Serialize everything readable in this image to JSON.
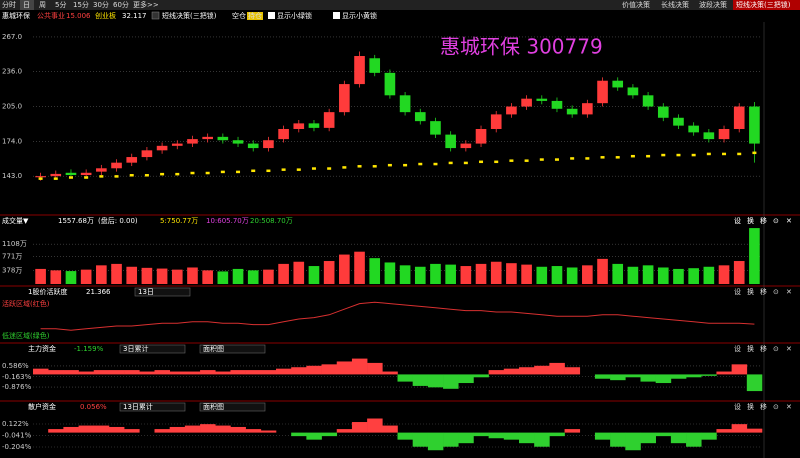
{
  "toolbar": {
    "tabs": [
      "分时",
      "日",
      "周",
      "5分",
      "15分",
      "30分",
      "60分",
      "更多>>"
    ],
    "right": [
      "价值决策",
      "长线决策",
      "波段决策",
      "短线决策(三把锁)"
    ]
  },
  "info": {
    "name": "惠城环保",
    "sector": "公共事业",
    "sector_value": "15.006",
    "board": "创业板",
    "board_value": "32.117",
    "indicator": "短线决策(三把锁)",
    "flat": "空仓",
    "hold": "持仓",
    "green_lock": "显示小绿锁",
    "yellow_lock": "显示小黄锁"
  },
  "panel_tools": [
    "设",
    "换",
    "移",
    "⊙",
    "✕"
  ],
  "chart_data": [
    {
      "type": "candlestick",
      "title": "惠城环保  300779",
      "up_color": "#ff3b3b",
      "down_color": "#22d822",
      "ma_color": "#ffe600",
      "open": [
        142,
        143,
        146,
        144,
        147,
        150,
        155,
        160,
        166,
        170,
        172,
        176,
        178,
        175,
        172,
        168,
        176,
        185,
        190,
        186,
        200,
        225,
        248,
        235,
        215,
        200,
        192,
        180,
        168,
        172,
        185,
        198,
        205,
        212,
        210,
        203,
        198,
        208,
        228,
        222,
        215,
        205,
        195,
        188,
        182,
        176,
        185,
        205
      ],
      "close": [
        143,
        145,
        144,
        146,
        150,
        155,
        160,
        166,
        170,
        172,
        176,
        178,
        175,
        172,
        168,
        175,
        185,
        190,
        186,
        200,
        225,
        250,
        235,
        215,
        200,
        192,
        180,
        168,
        172,
        185,
        198,
        205,
        212,
        210,
        203,
        198,
        208,
        228,
        222,
        215,
        205,
        195,
        188,
        182,
        176,
        185,
        205,
        172
      ],
      "high": [
        146,
        148,
        149,
        149,
        153,
        158,
        163,
        169,
        173,
        175,
        179,
        181,
        181,
        178,
        175,
        178,
        188,
        193,
        193,
        203,
        228,
        254,
        251,
        238,
        218,
        203,
        195,
        183,
        175,
        188,
        201,
        208,
        215,
        215,
        213,
        206,
        211,
        231,
        231,
        225,
        218,
        208,
        198,
        191,
        185,
        188,
        208,
        209
      ],
      "low": [
        139,
        140,
        141,
        141,
        144,
        147,
        152,
        157,
        163,
        167,
        169,
        173,
        172,
        169,
        165,
        165,
        173,
        182,
        183,
        183,
        197,
        222,
        232,
        212,
        197,
        189,
        177,
        165,
        165,
        169,
        182,
        195,
        202,
        207,
        200,
        195,
        195,
        205,
        219,
        212,
        202,
        192,
        185,
        179,
        173,
        173,
        182,
        155
      ],
      "ma_values": [
        141,
        141,
        142,
        142,
        143,
        143,
        144,
        144,
        145,
        145,
        146,
        146,
        147,
        147,
        148,
        148,
        149,
        149,
        150,
        150,
        151,
        152,
        152,
        153,
        153,
        154,
        154,
        155,
        155,
        156,
        156,
        157,
        157,
        158,
        158,
        159,
        159,
        160,
        160,
        161,
        161,
        162,
        162,
        162,
        163,
        163,
        163,
        164
      ],
      "ylim": [
        117.3,
        280.3
      ],
      "yticks": [
        {
          "value": 267,
          "label": "267.0"
        },
        {
          "value": 236,
          "label": "236.0"
        },
        {
          "value": 205,
          "label": "205.0"
        },
        {
          "value": 174,
          "label": "174.0"
        },
        {
          "value": 143,
          "label": "143.0"
        }
      ],
      "grid": true
    },
    {
      "type": "bar",
      "title": "成交量▼",
      "value_text": "1557.68万",
      "after_hours": "(盘后: 0.00)",
      "ma_labels": [
        "5:750.77万",
        "10:605.70万",
        "20:508.70万"
      ],
      "values": [
        420,
        380,
        360,
        400,
        520,
        560,
        480,
        450,
        430,
        400,
        460,
        380,
        350,
        420,
        380,
        400,
        560,
        620,
        500,
        640,
        820,
        900,
        720,
        600,
        520,
        480,
        560,
        540,
        500,
        560,
        620,
        580,
        540,
        480,
        500,
        460,
        520,
        700,
        560,
        480,
        520,
        460,
        420,
        440,
        480,
        520,
        640,
        1557.68
      ],
      "ylim": [
        0,
        1560
      ],
      "yticks": [
        {
          "value": 1108,
          "label": "1108万"
        },
        {
          "value": 771,
          "label": "771万"
        },
        {
          "value": 378,
          "label": "378万"
        }
      ],
      "grid": true
    },
    {
      "type": "line",
      "title": "1股价活跃度",
      "value_text": "21.366",
      "period": "13日",
      "upper_label": "活跃区域(红色)",
      "lower_label": "低迷区域(绿色)",
      "color": "#d83030",
      "values": [
        18,
        18,
        17,
        18,
        19,
        20,
        20,
        21,
        22,
        22,
        23,
        23,
        22,
        22,
        21,
        21,
        23,
        25,
        26,
        28,
        32,
        36,
        37,
        36,
        35,
        34,
        33,
        32,
        31,
        31,
        30,
        30,
        29,
        28,
        27,
        27,
        27,
        28,
        28,
        27,
        26,
        25,
        24,
        23,
        22,
        22,
        22,
        21.366
      ],
      "ylim": [
        10,
        40
      ]
    },
    {
      "type": "area",
      "title": "主力资金",
      "value_text": "-1.159%",
      "period": "3日累计",
      "style": "面积图",
      "up_color": "#ff4040",
      "down_color": "#2fd02f",
      "values": [
        0.4,
        0.3,
        0.3,
        0.2,
        0.3,
        0.3,
        0.3,
        0.2,
        0.3,
        0.2,
        0.2,
        0.3,
        0.2,
        0.3,
        0.3,
        0.3,
        0.4,
        0.5,
        0.6,
        0.7,
        0.9,
        1.1,
        0.8,
        0.2,
        -0.5,
        -0.8,
        -0.9,
        -1.0,
        -0.6,
        -0.2,
        0.3,
        0.4,
        0.5,
        0.6,
        0.8,
        0.5,
        0.0,
        -0.3,
        -0.4,
        -0.2,
        -0.5,
        -0.6,
        -0.3,
        -0.2,
        -0.1,
        0.2,
        0.7,
        -1.159
      ],
      "ylim": [
        -1.64,
        1.35
      ],
      "yticks": [
        {
          "value": 0.586,
          "label": "0.586%"
        },
        {
          "value": -0.163,
          "label": "-0.163%"
        },
        {
          "value": -0.876,
          "label": "-0.876%"
        }
      ],
      "grid": true
    },
    {
      "type": "area",
      "title": "散户资金",
      "value_text": "0.056%",
      "period": "13日累计",
      "style": "面积图",
      "up_color": "#ff4040",
      "down_color": "#2fd02f",
      "values": [
        0.0,
        0.05,
        0.08,
        0.1,
        0.1,
        0.08,
        0.05,
        0.0,
        0.05,
        0.08,
        0.1,
        0.12,
        0.1,
        0.08,
        0.05,
        0.03,
        0.0,
        -0.05,
        -0.1,
        -0.05,
        0.05,
        0.15,
        0.2,
        0.1,
        -0.1,
        -0.2,
        -0.25,
        -0.2,
        -0.15,
        -0.05,
        -0.08,
        -0.1,
        -0.15,
        -0.2,
        -0.05,
        0.05,
        0.0,
        -0.1,
        -0.2,
        -0.25,
        -0.15,
        -0.05,
        -0.15,
        -0.2,
        -0.1,
        0.05,
        0.12,
        0.056
      ],
      "ylim": [
        -0.346,
        0.264
      ],
      "yticks": [
        {
          "value": 0.122,
          "label": "0.122%"
        },
        {
          "value": -0.041,
          "label": "-0.041%"
        },
        {
          "value": -0.204,
          "label": "-0.204%"
        }
      ],
      "grid": true
    }
  ]
}
